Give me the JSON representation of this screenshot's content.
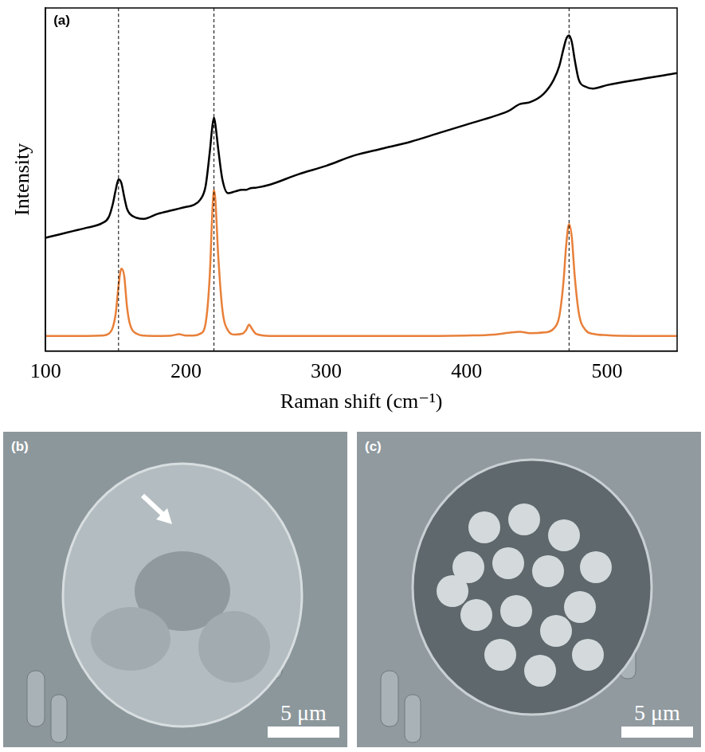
{
  "chart_data": {
    "type": "line",
    "label": "(a)",
    "x_label": "Raman shift (cm⁻¹)",
    "y_label": "Intensity",
    "xlim": [
      100,
      550
    ],
    "xticks": [
      100,
      200,
      300,
      400,
      500
    ],
    "ylim": [
      0,
      100
    ],
    "tick_labels": "x",
    "grid": false,
    "vlines": [
      152,
      220,
      473
    ],
    "x": [
      100,
      110,
      120,
      130,
      140,
      145,
      148,
      150,
      152,
      154,
      156,
      158,
      160,
      165,
      170,
      180,
      190,
      195,
      200,
      205,
      210,
      214,
      217,
      219,
      220,
      221,
      223,
      226,
      230,
      235,
      240,
      243,
      245,
      247,
      250,
      260,
      280,
      300,
      320,
      340,
      360,
      380,
      400,
      420,
      430,
      438,
      445,
      455,
      462,
      466,
      469,
      471,
      473,
      475,
      477,
      480,
      485,
      490,
      500,
      520,
      550
    ],
    "series": [
      {
        "color": "#000000",
        "values": [
          33,
          34,
          35,
          36,
          37.2,
          39,
          43,
          47,
          50,
          49,
          45,
          41.5,
          40,
          38.8,
          38.5,
          40,
          41,
          41.5,
          42,
          42.5,
          44,
          48,
          58,
          66,
          68,
          66,
          59,
          50,
          46,
          46.5,
          47,
          47,
          47.3,
          47.5,
          47.6,
          48.5,
          51.5,
          54,
          57,
          59,
          61,
          63.5,
          66,
          68.5,
          70,
          72,
          72.5,
          75,
          79,
          83,
          88,
          91,
          92,
          90,
          85,
          79,
          77,
          76.5,
          77.5,
          79,
          81
        ]
      },
      {
        "color": "#e8803a",
        "values": [
          4.4,
          4.4,
          4.4,
          4.4,
          4.5,
          5,
          7,
          11,
          19,
          24,
          22,
          13,
          8,
          5,
          4.5,
          4.4,
          4.5,
          4.9,
          4.5,
          4.5,
          5,
          8,
          22,
          42,
          47,
          44,
          28,
          12,
          6,
          4.8,
          5,
          6.2,
          7.7,
          6.5,
          5,
          4.4,
          4.4,
          4.4,
          4.4,
          4.4,
          4.4,
          4.4,
          4.5,
          4.8,
          5.3,
          5.6,
          5.2,
          5.4,
          6.5,
          10,
          20,
          31,
          37,
          33,
          22,
          11,
          6,
          5,
          4.6,
          4.4,
          4.4
        ]
      }
    ]
  },
  "panels": [
    {
      "label": "(b)",
      "scale_bar": "5 μm"
    },
    {
      "label": "(c)",
      "scale_bar": "5 μm"
    }
  ]
}
